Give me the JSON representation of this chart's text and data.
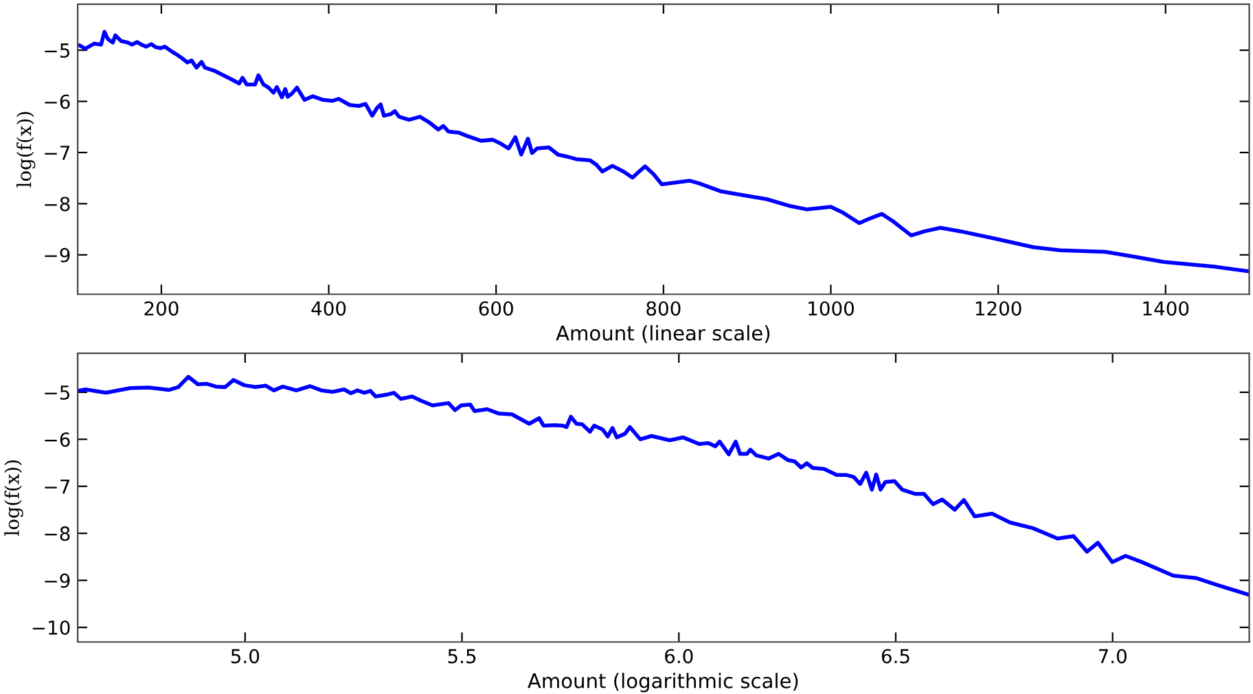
{
  "chart_data": [
    {
      "type": "line",
      "xlabel": "Amount (linear scale)",
      "ylabel": "log(f(x))",
      "xlim": [
        100,
        1500
      ],
      "xticks": [
        200,
        400,
        600,
        800,
        1000,
        1200,
        1400
      ],
      "ylim": [
        -9.77,
        -4.1
      ],
      "yticks": [
        {
          "value": -9,
          "label": "−9"
        },
        {
          "value": -8,
          "label": "−8"
        },
        {
          "value": -7,
          "label": "−7"
        },
        {
          "value": -6,
          "label": "−6"
        },
        {
          "value": -5,
          "label": "−5"
        }
      ],
      "grid": false,
      "legend": false,
      "marker": "none",
      "line_style": "solid",
      "series": [
        {
          "color": "#0000ff",
          "x": [
            102.7,
            109,
            120,
            128,
            132,
            136,
            142,
            145,
            152,
            160,
            165,
            171,
            176,
            182,
            188,
            193,
            199,
            204,
            212,
            217,
            225,
            231,
            236,
            242,
            248,
            252,
            263,
            274,
            285,
            293,
            297,
            302,
            312,
            316,
            322,
            328,
            334,
            338,
            344,
            348,
            351,
            356,
            362,
            371,
            381,
            393,
            404,
            412,
            425,
            436,
            444,
            452,
            458,
            462,
            466,
            474,
            479,
            484,
            496,
            509,
            520,
            531,
            537,
            543,
            555,
            566,
            582,
            596,
            606,
            615,
            623,
            630,
            638,
            643,
            649,
            663,
            674,
            685,
            696,
            712,
            720,
            727,
            739,
            752,
            763,
            771,
            778,
            788,
            798,
            831,
            842,
            869,
            890,
            923,
            950,
            971,
            1000,
            1015,
            1034,
            1045,
            1061,
            1074,
            1096,
            1112,
            1131,
            1155,
            1198,
            1242,
            1274,
            1328,
            1361,
            1398,
            1458,
            1499
          ],
          "values": [
            -4.91,
            -4.97,
            -4.87,
            -4.89,
            -4.64,
            -4.78,
            -4.85,
            -4.71,
            -4.82,
            -4.85,
            -4.89,
            -4.84,
            -4.89,
            -4.93,
            -4.88,
            -4.94,
            -4.96,
            -4.93,
            -5.02,
            -5.07,
            -5.16,
            -5.24,
            -5.2,
            -5.34,
            -5.23,
            -5.34,
            -5.4,
            -5.49,
            -5.58,
            -5.65,
            -5.54,
            -5.67,
            -5.67,
            -5.49,
            -5.67,
            -5.73,
            -5.83,
            -5.72,
            -5.92,
            -5.76,
            -5.91,
            -5.85,
            -5.73,
            -5.97,
            -5.9,
            -5.97,
            -5.99,
            -5.95,
            -6.07,
            -6.09,
            -6.05,
            -6.28,
            -6.12,
            -6.06,
            -6.28,
            -6.25,
            -6.19,
            -6.3,
            -6.36,
            -6.3,
            -6.41,
            -6.55,
            -6.48,
            -6.59,
            -6.61,
            -6.68,
            -6.77,
            -6.75,
            -6.83,
            -6.92,
            -6.7,
            -7.04,
            -6.73,
            -7.01,
            -6.92,
            -6.9,
            -7.04,
            -7.08,
            -7.13,
            -7.15,
            -7.24,
            -7.37,
            -7.26,
            -7.37,
            -7.49,
            -7.37,
            -7.27,
            -7.42,
            -7.62,
            -7.55,
            -7.6,
            -7.76,
            -7.82,
            -7.91,
            -8.04,
            -8.11,
            -8.06,
            -8.18,
            -8.38,
            -8.3,
            -8.2,
            -8.34,
            -8.62,
            -8.54,
            -8.47,
            -8.54,
            -8.69,
            -8.85,
            -8.91,
            -8.94,
            -9.03,
            -9.14,
            -9.23,
            -9.32
          ]
        }
      ]
    },
    {
      "type": "line",
      "xlabel": "Amount (logarithmic scale)",
      "ylabel": "log(f(x))",
      "xlim": [
        4.614,
        7.315
      ],
      "xticks": [
        {
          "value": 5,
          "label": "5.0"
        },
        5.5,
        {
          "value": 6,
          "label": "6.0"
        },
        6.5,
        {
          "value": 7,
          "label": "7.0"
        }
      ],
      "ylim": [
        -10.31,
        -4.17
      ],
      "yticks": [
        {
          "value": -10,
          "label": "−10"
        },
        {
          "value": -9,
          "label": "−9"
        },
        {
          "value": -8,
          "label": "−8"
        },
        {
          "value": -7,
          "label": "−7"
        },
        {
          "value": -6,
          "label": "−6"
        },
        {
          "value": -5,
          "label": "−5"
        }
      ],
      "grid": false,
      "legend": false,
      "marker": "none",
      "line_style": "solid",
      "series": [
        {
          "color": "#0000ff",
          "x": [
            4.614,
            4.632,
            4.679,
            4.736,
            4.778,
            4.825,
            4.846,
            4.869,
            4.891,
            4.912,
            4.933,
            4.954,
            4.973,
            4.998,
            5.024,
            5.048,
            5.066,
            5.087,
            5.118,
            5.15,
            5.176,
            5.202,
            5.228,
            5.244,
            5.259,
            5.275,
            5.289,
            5.301,
            5.327,
            5.343,
            5.359,
            5.385,
            5.406,
            5.432,
            5.469,
            5.484,
            5.498,
            5.519,
            5.529,
            5.558,
            5.584,
            5.615,
            5.655,
            5.678,
            5.688,
            5.714,
            5.732,
            5.741,
            5.751,
            5.764,
            5.777,
            5.795,
            5.805,
            5.824,
            5.836,
            5.847,
            5.857,
            5.876,
            5.887,
            5.911,
            5.937,
            5.979,
            6.01,
            6.047,
            6.068,
            6.084,
            6.094,
            6.115,
            6.131,
            6.141,
            6.157,
            6.165,
            6.178,
            6.207,
            6.23,
            6.251,
            6.267,
            6.282,
            6.295,
            6.309,
            6.335,
            6.364,
            6.387,
            6.403,
            6.418,
            6.432,
            6.445,
            6.455,
            6.465,
            6.476,
            6.497,
            6.515,
            6.544,
            6.565,
            6.586,
            6.607,
            6.636,
            6.657,
            6.682,
            6.722,
            6.764,
            6.816,
            6.873,
            6.91,
            6.941,
            6.966,
            6.999,
            7.03,
            7.067,
            7.14,
            7.192,
            7.245,
            7.315
          ],
          "values": [
            -4.97,
            -4.94,
            -5.01,
            -4.91,
            -4.9,
            -4.95,
            -4.89,
            -4.67,
            -4.83,
            -4.82,
            -4.88,
            -4.89,
            -4.74,
            -4.85,
            -4.89,
            -4.86,
            -4.96,
            -4.88,
            -4.96,
            -4.87,
            -4.96,
            -4.99,
            -4.94,
            -5.02,
            -4.96,
            -5.01,
            -4.97,
            -5.09,
            -5.05,
            -5.01,
            -5.14,
            -5.09,
            -5.18,
            -5.28,
            -5.23,
            -5.38,
            -5.28,
            -5.26,
            -5.4,
            -5.36,
            -5.45,
            -5.47,
            -5.67,
            -5.55,
            -5.71,
            -5.7,
            -5.71,
            -5.74,
            -5.52,
            -5.67,
            -5.68,
            -5.84,
            -5.71,
            -5.79,
            -5.94,
            -5.76,
            -5.96,
            -5.88,
            -5.74,
            -6.0,
            -5.93,
            -6.02,
            -5.96,
            -6.1,
            -6.08,
            -6.15,
            -6.05,
            -6.32,
            -6.05,
            -6.31,
            -6.31,
            -6.22,
            -6.34,
            -6.41,
            -6.31,
            -6.44,
            -6.47,
            -6.6,
            -6.51,
            -6.61,
            -6.63,
            -6.76,
            -6.76,
            -6.8,
            -6.95,
            -6.71,
            -7.07,
            -6.75,
            -7.07,
            -6.91,
            -6.89,
            -7.07,
            -7.16,
            -7.16,
            -7.38,
            -7.28,
            -7.5,
            -7.29,
            -7.64,
            -7.58,
            -7.77,
            -7.89,
            -8.11,
            -8.06,
            -8.39,
            -8.2,
            -8.61,
            -8.48,
            -8.61,
            -8.9,
            -8.95,
            -9.11,
            -9.31
          ]
        }
      ]
    }
  ]
}
